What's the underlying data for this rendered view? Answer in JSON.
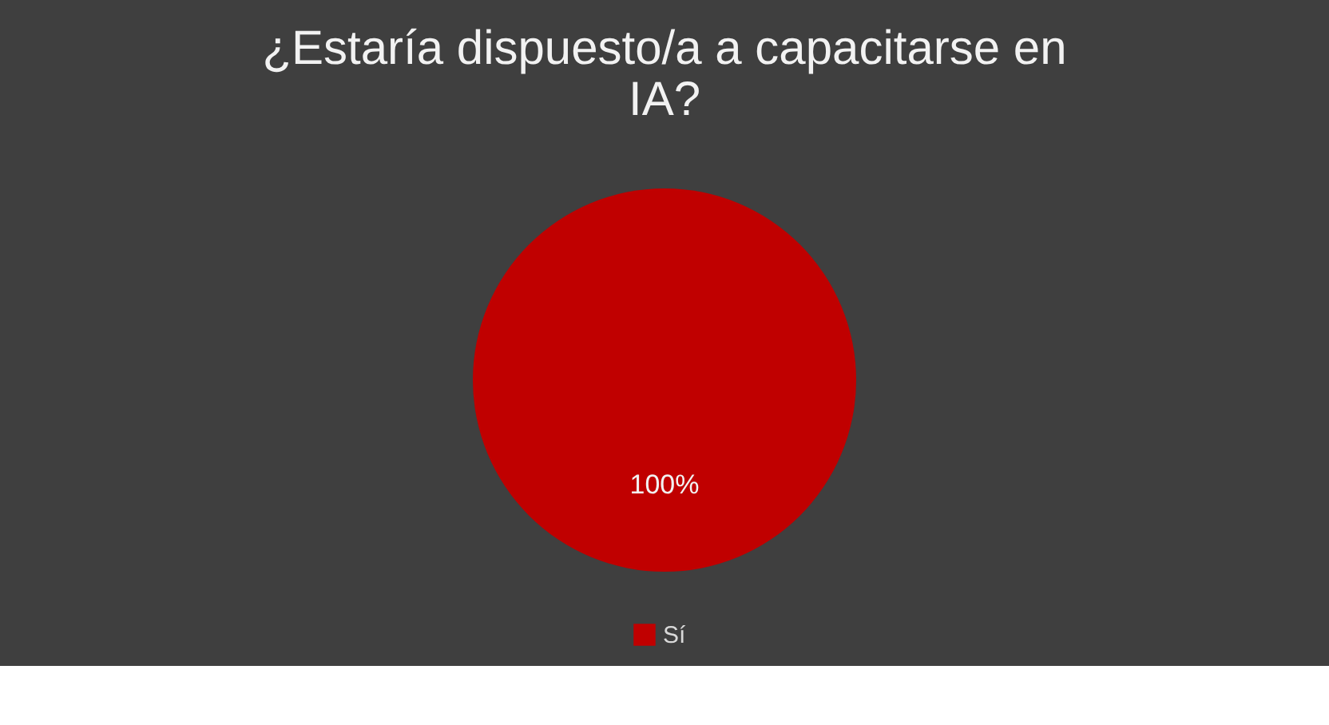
{
  "chart_data": {
    "type": "pie",
    "title": "¿Estaría dispuesto/a a capacitarse en IA?",
    "categories": [
      "Sí"
    ],
    "values": [
      100
    ],
    "colors": [
      "#c00000"
    ],
    "value_labels": [
      "100%"
    ],
    "legend": "bottom"
  }
}
